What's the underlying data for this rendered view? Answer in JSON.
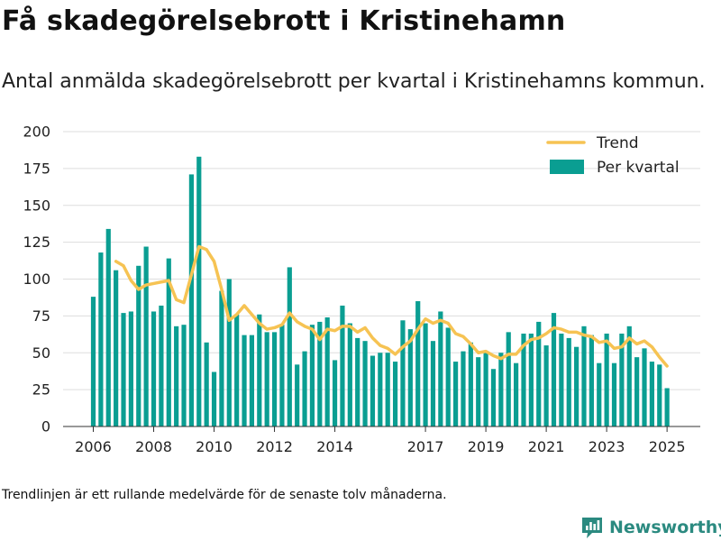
{
  "page": {
    "title": "Få skadegörelsebrott i Kristinehamn",
    "subtitle": "Antal anmälda skadegörelsebrott per kvartal i Kristinehamns kommun.",
    "note": "Trendlinjen är ett rullande medelvärde för de senaste tolv månaderna.",
    "brand": "Newsworthy"
  },
  "colors": {
    "bar": "#0a9e92",
    "trend": "#f6c353",
    "grid": "#dddddd",
    "brand": "#2b8a80"
  },
  "chart_data": {
    "type": "bar",
    "ylim": [
      0,
      200
    ],
    "yticks": [
      0,
      25,
      50,
      75,
      100,
      125,
      150,
      175,
      200
    ],
    "xlim": [
      2005.0,
      2026.1
    ],
    "xtick_labels": [
      {
        "label": "2006",
        "x": 2006.0
      },
      {
        "label": "2008",
        "x": 2008.0
      },
      {
        "label": "2010",
        "x": 2010.0
      },
      {
        "label": "2012",
        "x": 2012.0
      },
      {
        "label": "2014",
        "x": 2014.0
      },
      {
        "label": "2017",
        "x": 2017.0
      },
      {
        "label": "2019",
        "x": 2019.0
      },
      {
        "label": "2021",
        "x": 2021.0
      },
      {
        "label": "2023",
        "x": 2023.0
      },
      {
        "label": "2025",
        "x": 2025.0
      }
    ],
    "legend": {
      "position": "top-right",
      "entries": [
        {
          "label": "Trend",
          "kind": "line"
        },
        {
          "label": "Per kvartal",
          "kind": "bar"
        }
      ]
    },
    "grid": true,
    "series": [
      {
        "name": "Per kvartal",
        "kind": "bar",
        "points": [
          [
            2006.0,
            88
          ],
          [
            2006.25,
            118
          ],
          [
            2006.5,
            134
          ],
          [
            2006.75,
            106
          ],
          [
            2007.0,
            77
          ],
          [
            2007.25,
            78
          ],
          [
            2007.5,
            109
          ],
          [
            2007.75,
            122
          ],
          [
            2008.0,
            78
          ],
          [
            2008.25,
            82
          ],
          [
            2008.5,
            114
          ],
          [
            2008.75,
            68
          ],
          [
            2009.0,
            69
          ],
          [
            2009.25,
            171
          ],
          [
            2009.5,
            183
          ],
          [
            2009.75,
            57
          ],
          [
            2010.0,
            37
          ],
          [
            2010.25,
            92
          ],
          [
            2010.5,
            100
          ],
          [
            2010.75,
            76
          ],
          [
            2011.0,
            62
          ],
          [
            2011.25,
            62
          ],
          [
            2011.5,
            76
          ],
          [
            2011.75,
            64
          ],
          [
            2012.0,
            64
          ],
          [
            2012.25,
            69
          ],
          [
            2012.5,
            108
          ],
          [
            2012.75,
            42
          ],
          [
            2013.0,
            51
          ],
          [
            2013.25,
            69
          ],
          [
            2013.5,
            71
          ],
          [
            2013.75,
            74
          ],
          [
            2014.0,
            45
          ],
          [
            2014.25,
            82
          ],
          [
            2014.5,
            70
          ],
          [
            2014.75,
            60
          ],
          [
            2015.0,
            58
          ],
          [
            2015.25,
            48
          ],
          [
            2015.5,
            50
          ],
          [
            2015.75,
            50
          ],
          [
            2016.0,
            44
          ],
          [
            2016.25,
            72
          ],
          [
            2016.5,
            66
          ],
          [
            2016.75,
            85
          ],
          [
            2017.0,
            70
          ],
          [
            2017.25,
            58
          ],
          [
            2017.5,
            78
          ],
          [
            2017.75,
            67
          ],
          [
            2018.0,
            44
          ],
          [
            2018.25,
            51
          ],
          [
            2018.5,
            57
          ],
          [
            2018.75,
            47
          ],
          [
            2019.0,
            50
          ],
          [
            2019.25,
            39
          ],
          [
            2019.5,
            50
          ],
          [
            2019.75,
            64
          ],
          [
            2020.0,
            43
          ],
          [
            2020.25,
            63
          ],
          [
            2020.5,
            63
          ],
          [
            2020.75,
            71
          ],
          [
            2021.0,
            55
          ],
          [
            2021.25,
            77
          ],
          [
            2021.5,
            63
          ],
          [
            2021.75,
            60
          ],
          [
            2022.0,
            54
          ],
          [
            2022.25,
            68
          ],
          [
            2022.5,
            62
          ],
          [
            2022.75,
            43
          ],
          [
            2023.0,
            63
          ],
          [
            2023.25,
            43
          ],
          [
            2023.5,
            63
          ],
          [
            2023.75,
            68
          ],
          [
            2024.0,
            47
          ],
          [
            2024.25,
            53
          ],
          [
            2024.5,
            44
          ],
          [
            2024.75,
            42
          ],
          [
            2025.0,
            26
          ]
        ]
      },
      {
        "name": "Trend",
        "kind": "line",
        "points": [
          [
            2006.75,
            112
          ],
          [
            2007.0,
            109
          ],
          [
            2007.25,
            99
          ],
          [
            2007.5,
            93
          ],
          [
            2007.75,
            96
          ],
          [
            2008.0,
            97
          ],
          [
            2008.25,
            98
          ],
          [
            2008.5,
            99
          ],
          [
            2008.75,
            86
          ],
          [
            2009.0,
            84
          ],
          [
            2009.25,
            103
          ],
          [
            2009.5,
            122
          ],
          [
            2009.75,
            120
          ],
          [
            2010.0,
            112
          ],
          [
            2010.25,
            93
          ],
          [
            2010.5,
            72
          ],
          [
            2010.75,
            76
          ],
          [
            2011.0,
            82
          ],
          [
            2011.25,
            76
          ],
          [
            2011.5,
            70
          ],
          [
            2011.75,
            66
          ],
          [
            2012.0,
            67
          ],
          [
            2012.25,
            69
          ],
          [
            2012.5,
            77
          ],
          [
            2012.75,
            71
          ],
          [
            2013.0,
            68
          ],
          [
            2013.25,
            66
          ],
          [
            2013.5,
            59
          ],
          [
            2013.75,
            66
          ],
          [
            2014.0,
            65
          ],
          [
            2014.25,
            68
          ],
          [
            2014.5,
            68
          ],
          [
            2014.75,
            64
          ],
          [
            2015.0,
            67
          ],
          [
            2015.25,
            60
          ],
          [
            2015.5,
            55
          ],
          [
            2015.75,
            53
          ],
          [
            2016.0,
            49
          ],
          [
            2016.25,
            54
          ],
          [
            2016.5,
            58
          ],
          [
            2016.75,
            66
          ],
          [
            2017.0,
            73
          ],
          [
            2017.25,
            70
          ],
          [
            2017.5,
            72
          ],
          [
            2017.75,
            70
          ],
          [
            2018.0,
            63
          ],
          [
            2018.25,
            61
          ],
          [
            2018.5,
            56
          ],
          [
            2018.75,
            50
          ],
          [
            2019.0,
            51
          ],
          [
            2019.25,
            48
          ],
          [
            2019.5,
            46
          ],
          [
            2019.75,
            49
          ],
          [
            2020.0,
            49
          ],
          [
            2020.25,
            55
          ],
          [
            2020.5,
            59
          ],
          [
            2020.75,
            60
          ],
          [
            2021.0,
            63
          ],
          [
            2021.25,
            67
          ],
          [
            2021.5,
            66
          ],
          [
            2021.75,
            64
          ],
          [
            2022.0,
            64
          ],
          [
            2022.25,
            62
          ],
          [
            2022.5,
            61
          ],
          [
            2022.75,
            57
          ],
          [
            2023.0,
            58
          ],
          [
            2023.25,
            53
          ],
          [
            2023.5,
            54
          ],
          [
            2023.75,
            60
          ],
          [
            2024.0,
            56
          ],
          [
            2024.25,
            58
          ],
          [
            2024.5,
            54
          ],
          [
            2024.75,
            47
          ],
          [
            2025.0,
            41
          ]
        ]
      }
    ]
  }
}
